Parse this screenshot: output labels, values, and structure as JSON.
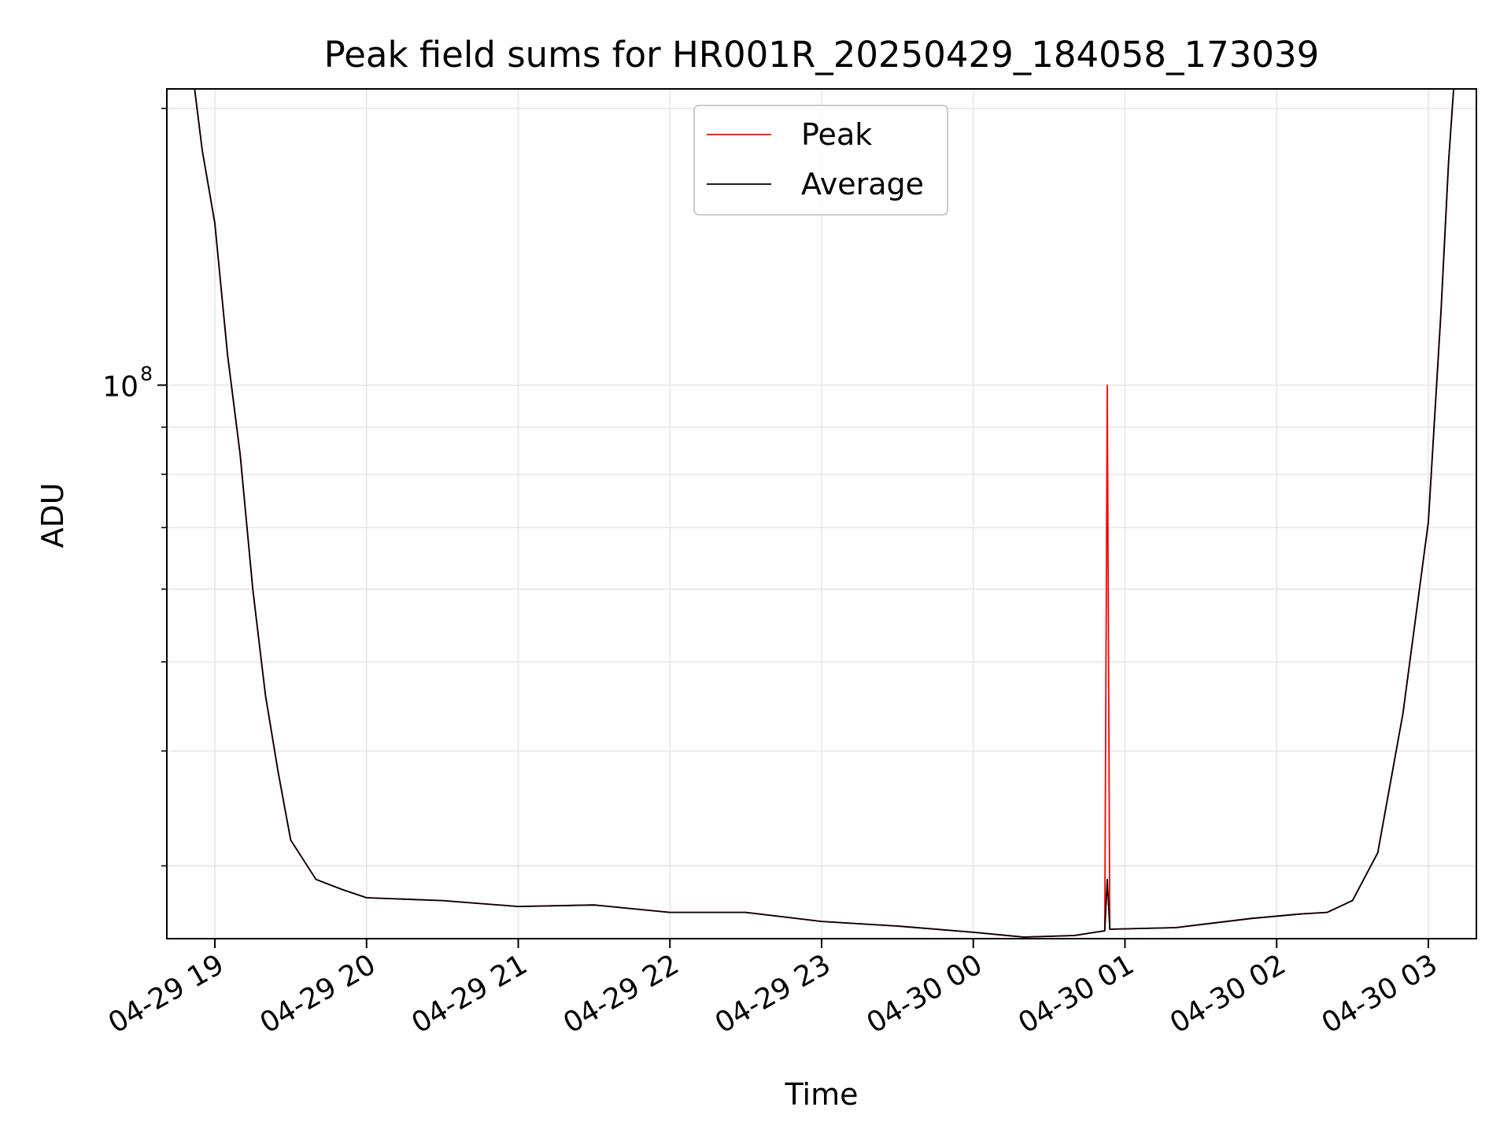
{
  "chart_data": {
    "type": "line",
    "title": "Peak field sums for HR001R_20250429_184058_173039",
    "xlabel": "Time",
    "ylabel": "ADU",
    "y_scale": "log",
    "ylim": [
      25000000,
      210000000
    ],
    "xlim": [
      "2025-04-29 18:41",
      "2025-04-30 03:19"
    ],
    "grid": true,
    "legend_position": "upper-center",
    "x_ticks": [
      {
        "time": "2025-04-29 19:00",
        "label": "04-29 19"
      },
      {
        "time": "2025-04-29 20:00",
        "label": "04-29 20"
      },
      {
        "time": "2025-04-29 21:00",
        "label": "04-29 21"
      },
      {
        "time": "2025-04-29 22:00",
        "label": "04-29 22"
      },
      {
        "time": "2025-04-29 23:00",
        "label": "04-29 23"
      },
      {
        "time": "2025-04-30 00:00",
        "label": "04-30 00"
      },
      {
        "time": "2025-04-30 01:00",
        "label": "04-30 01"
      },
      {
        "time": "2025-04-30 02:00",
        "label": "04-30 02"
      },
      {
        "time": "2025-04-30 03:00",
        "label": "04-30 03"
      }
    ],
    "y_major_ticks": [
      {
        "value": 100000000,
        "label_base": "10",
        "label_exp": "8"
      }
    ],
    "y_minor_ticks": [
      30000000,
      40000000,
      50000000,
      60000000,
      70000000,
      80000000,
      90000000,
      200000000
    ],
    "series": [
      {
        "name": "Peak",
        "color": "#ff0000",
        "x": [
          "2025-04-29 18:52",
          "2025-04-29 18:55",
          "2025-04-29 19:00",
          "2025-04-29 19:05",
          "2025-04-29 19:10",
          "2025-04-29 19:15",
          "2025-04-29 19:20",
          "2025-04-29 19:25",
          "2025-04-29 19:30",
          "2025-04-29 19:40",
          "2025-04-29 19:50",
          "2025-04-29 20:00",
          "2025-04-29 20:30",
          "2025-04-29 21:00",
          "2025-04-29 21:30",
          "2025-04-29 22:00",
          "2025-04-29 22:30",
          "2025-04-29 23:00",
          "2025-04-29 23:30",
          "2025-04-30 00:00",
          "2025-04-30 00:20",
          "2025-04-30 00:40",
          "2025-04-30 00:52",
          "2025-04-30 00:53",
          "2025-04-30 00:54",
          "2025-04-30 01:20",
          "2025-04-30 01:50",
          "2025-04-30 02:10",
          "2025-04-30 02:20",
          "2025-04-30 02:30",
          "2025-04-30 02:40",
          "2025-04-30 02:50",
          "2025-04-30 03:00",
          "2025-04-30 03:05",
          "2025-04-30 03:08",
          "2025-04-30 03:10"
        ],
        "values": [
          210000000,
          180000000,
          150000000,
          108000000,
          84000000,
          60000000,
          46000000,
          38000000,
          32000000,
          29000000,
          28300000,
          27700000,
          27500000,
          27100000,
          27200000,
          26700000,
          26700000,
          26100000,
          25800000,
          25400000,
          25100000,
          25200000,
          25500000,
          100000000,
          25600000,
          25700000,
          26300000,
          26600000,
          26700000,
          27500000,
          31000000,
          44000000,
          71000000,
          120000000,
          175000000,
          210000000
        ]
      },
      {
        "name": "Average",
        "color": "#000000",
        "x": [
          "2025-04-29 18:52",
          "2025-04-29 18:55",
          "2025-04-29 19:00",
          "2025-04-29 19:05",
          "2025-04-29 19:10",
          "2025-04-29 19:15",
          "2025-04-29 19:20",
          "2025-04-29 19:25",
          "2025-04-29 19:30",
          "2025-04-29 19:40",
          "2025-04-29 19:50",
          "2025-04-29 20:00",
          "2025-04-29 20:30",
          "2025-04-29 21:00",
          "2025-04-29 21:30",
          "2025-04-29 22:00",
          "2025-04-29 22:30",
          "2025-04-29 23:00",
          "2025-04-29 23:30",
          "2025-04-30 00:00",
          "2025-04-30 00:20",
          "2025-04-30 00:40",
          "2025-04-30 00:52",
          "2025-04-30 00:53",
          "2025-04-30 00:54",
          "2025-04-30 01:20",
          "2025-04-30 01:50",
          "2025-04-30 02:10",
          "2025-04-30 02:20",
          "2025-04-30 02:30",
          "2025-04-30 02:40",
          "2025-04-30 02:50",
          "2025-04-30 03:00",
          "2025-04-30 03:05",
          "2025-04-30 03:08",
          "2025-04-30 03:10"
        ],
        "values": [
          210000000,
          180000000,
          150000000,
          108000000,
          84000000,
          60000000,
          46000000,
          38000000,
          32000000,
          29000000,
          28300000,
          27700000,
          27500000,
          27100000,
          27200000,
          26700000,
          26700000,
          26100000,
          25800000,
          25400000,
          25100000,
          25200000,
          25500000,
          29000000,
          25600000,
          25700000,
          26300000,
          26600000,
          26700000,
          27500000,
          31000000,
          44000000,
          71000000,
          120000000,
          175000000,
          210000000
        ]
      }
    ]
  }
}
